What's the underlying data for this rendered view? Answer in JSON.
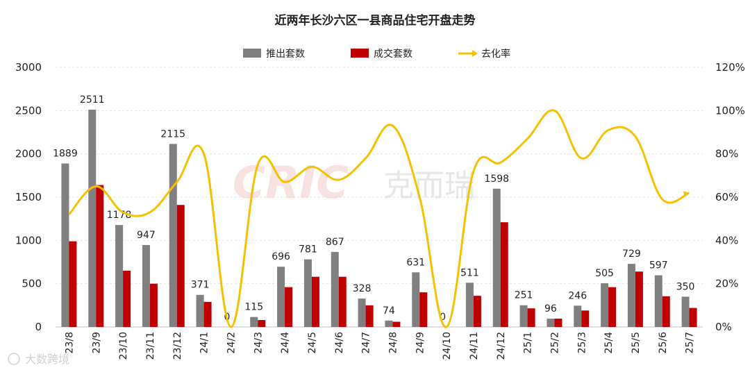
{
  "chart_data": {
    "type": "bar",
    "title": "近两年长沙六区一县商品住宅开盘走势",
    "categories": [
      "23/8",
      "23/9",
      "23/10",
      "23/11",
      "23/12",
      "24/1",
      "24/2",
      "24/3",
      "24/4",
      "24/5",
      "24/6",
      "24/7",
      "24/8",
      "24/9",
      "24/10",
      "24/11",
      "24/12",
      "25/1",
      "25/2",
      "25/3",
      "25/4",
      "25/5",
      "25/6",
      "25/7"
    ],
    "series": [
      {
        "name": "推出套数",
        "axis": "left",
        "color": "#808080",
        "values": [
          1889,
          2511,
          1178,
          947,
          2115,
          371,
          0,
          115,
          696,
          781,
          867,
          328,
          74,
          631,
          0,
          511,
          1598,
          251,
          96,
          246,
          505,
          729,
          597,
          350
        ]
      },
      {
        "name": "成交套数",
        "axis": "left",
        "color": "#c00000",
        "values": [
          990,
          1640,
          650,
          500,
          1410,
          290,
          0,
          80,
          460,
          580,
          580,
          250,
          60,
          400,
          0,
          360,
          1210,
          215,
          96,
          190,
          460,
          640,
          355,
          220
        ]
      },
      {
        "name": "去化率",
        "axis": "right",
        "type": "line",
        "color": "#f5c000",
        "values": [
          52,
          65,
          53,
          53,
          67,
          80,
          0,
          75,
          67,
          74,
          68,
          78,
          93,
          60,
          0,
          72,
          76,
          87,
          100,
          78,
          91,
          88,
          59,
          62
        ]
      }
    ],
    "y_left": {
      "min": 0,
      "max": 3000,
      "ticks": [
        "0",
        "500",
        "1000",
        "1500",
        "2000",
        "2500",
        "3000"
      ]
    },
    "y_right": {
      "min": 0,
      "max": 120,
      "ticks": [
        "0%",
        "20%",
        "40%",
        "60%",
        "80%",
        "100%",
        "120%"
      ]
    },
    "bar_labels_series": 0,
    "grid": true,
    "legend_position": "top-center"
  },
  "watermark": {
    "logo": "CRIC",
    "text": "克而瑞"
  },
  "footer_mark": "大数跨境"
}
